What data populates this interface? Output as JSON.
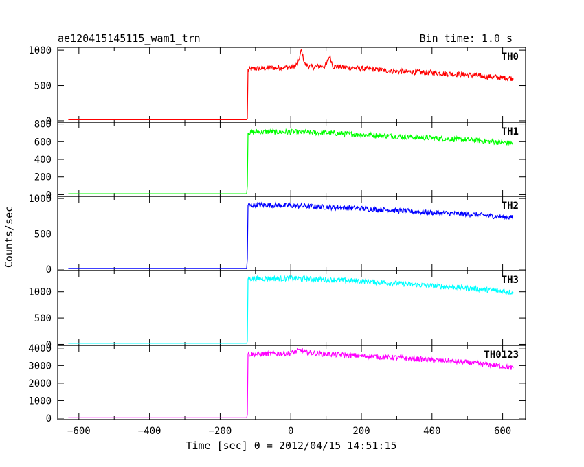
{
  "header": {
    "title": "ae120415145115_wam1_trn",
    "bin_time": "Bin time: 1.0 s"
  },
  "axes": {
    "ylabel": "Counts/sec",
    "xlabel": "Time [sec] 0 = 2012/04/15 14:51:15"
  },
  "chart_data": {
    "type": "line",
    "title": "ae120415145115_wam1_trn",
    "subtitle": "Bin time: 1.0 s",
    "xlabel": "Time [sec] 0 = 2012/04/15 14:51:15",
    "ylabel": "Counts/sec",
    "xlim": [
      -660,
      665
    ],
    "x_ticks": [
      -600,
      -400,
      -200,
      0,
      200,
      400,
      600
    ],
    "x_tick_labels": [
      "−600",
      "−400",
      "−200",
      "0",
      "200",
      "400",
      "600"
    ],
    "grid": false,
    "series": [
      {
        "name": "TH0",
        "color": "#ff0000",
        "ylim": [
          -20,
          1040
        ],
        "y_ticks": [
          0,
          500,
          1000
        ],
        "y_tick_labels": [
          "0",
          "500",
          "1000"
        ],
        "points": [
          [
            -630,
            15
          ],
          [
            -125,
            15
          ],
          [
            -123,
            30
          ],
          [
            -121,
            720
          ],
          [
            -100,
            740
          ],
          [
            -50,
            750
          ],
          [
            0,
            760
          ],
          [
            20,
            800
          ],
          [
            30,
            1000
          ],
          [
            40,
            800
          ],
          [
            60,
            760
          ],
          [
            100,
            780
          ],
          [
            110,
            920
          ],
          [
            120,
            770
          ],
          [
            200,
            740
          ],
          [
            300,
            700
          ],
          [
            400,
            680
          ],
          [
            500,
            650
          ],
          [
            600,
            610
          ],
          [
            630,
            600
          ]
        ]
      },
      {
        "name": "TH1",
        "color": "#00ff00",
        "ylim": [
          -20,
          820
        ],
        "y_ticks": [
          0,
          200,
          400,
          600,
          800
        ],
        "y_tick_labels": [
          "0",
          "200",
          "400",
          "600",
          "800"
        ],
        "points": [
          [
            -630,
            10
          ],
          [
            -125,
            10
          ],
          [
            -123,
            100
          ],
          [
            -121,
            700
          ],
          [
            -100,
            710
          ],
          [
            0,
            710
          ],
          [
            100,
            700
          ],
          [
            200,
            680
          ],
          [
            300,
            660
          ],
          [
            400,
            640
          ],
          [
            500,
            620
          ],
          [
            600,
            590
          ],
          [
            630,
            580
          ]
        ]
      },
      {
        "name": "TH2",
        "color": "#0000ff",
        "ylim": [
          -20,
          1030
        ],
        "y_ticks": [
          0,
          500,
          1000
        ],
        "y_tick_labels": [
          "0",
          "500",
          "1000"
        ],
        "points": [
          [
            -630,
            10
          ],
          [
            -125,
            10
          ],
          [
            -123,
            150
          ],
          [
            -121,
            900
          ],
          [
            -100,
            910
          ],
          [
            0,
            900
          ],
          [
            100,
            880
          ],
          [
            200,
            860
          ],
          [
            300,
            830
          ],
          [
            400,
            800
          ],
          [
            500,
            780
          ],
          [
            600,
            740
          ],
          [
            630,
            730
          ]
        ]
      },
      {
        "name": "TH3",
        "color": "#00ffff",
        "ylim": [
          -20,
          1400
        ],
        "y_ticks": [
          0,
          500,
          1000
        ],
        "y_tick_labels": [
          "0",
          "500",
          "1000"
        ],
        "points": [
          [
            -630,
            20
          ],
          [
            -125,
            20
          ],
          [
            -123,
            60
          ],
          [
            -121,
            1250
          ],
          [
            -100,
            1250
          ],
          [
            0,
            1250
          ],
          [
            100,
            1230
          ],
          [
            200,
            1200
          ],
          [
            300,
            1160
          ],
          [
            400,
            1110
          ],
          [
            500,
            1070
          ],
          [
            600,
            1010
          ],
          [
            630,
            990
          ]
        ]
      },
      {
        "name": "TH0123",
        "color": "#ff00ff",
        "ylim": [
          -80,
          4150
        ],
        "y_ticks": [
          0,
          1000,
          2000,
          3000,
          4000
        ],
        "y_tick_labels": [
          "0",
          "1000",
          "2000",
          "3000",
          "4000"
        ],
        "points": [
          [
            -630,
            20
          ],
          [
            -125,
            20
          ],
          [
            -123,
            200
          ],
          [
            -121,
            3650
          ],
          [
            -100,
            3650
          ],
          [
            0,
            3700
          ],
          [
            30,
            3900
          ],
          [
            40,
            3750
          ],
          [
            100,
            3650
          ],
          [
            200,
            3550
          ],
          [
            300,
            3450
          ],
          [
            400,
            3320
          ],
          [
            500,
            3180
          ],
          [
            600,
            2950
          ],
          [
            630,
            2850
          ]
        ]
      }
    ]
  }
}
